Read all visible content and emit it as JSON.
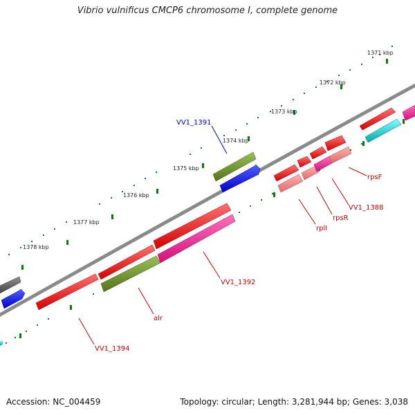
{
  "title": "Vibrio vulnificus CMCP6 chromosome I, complete genome",
  "footer": {
    "accession": "Accession: NC_004459",
    "topology": "Topology: circular; Length: 3,281,944 bp; Genes: 3,038"
  },
  "kbp_labels": [
    "1371 kbp",
    "1372 kbp",
    "1373 kbp",
    "1374 kbp",
    "1375 kbp",
    "1376 kbp",
    "1377 kbp",
    "1378 kbp"
  ],
  "gene_labels": {
    "vv1_1391": "VV1_1391",
    "vv1_1392": "VV1_1392",
    "vv1_1394": "VV1_1394",
    "alr": "alr",
    "rpli": "rplI",
    "rpsr": "rpsR",
    "vv1_1388": "VV1_1388",
    "rpsf": "rpsF"
  },
  "colors": {
    "backbone": "#888888",
    "red": "#ff0000",
    "pink": "#ff1493",
    "salmon": "#f08080",
    "olive": "#6b8e23",
    "blue": "#0000ff",
    "cyan": "#00cccc",
    "gray": "#606060",
    "tick": "#006400",
    "label_blue": "#0000cc",
    "label_red": "#cc0000"
  }
}
